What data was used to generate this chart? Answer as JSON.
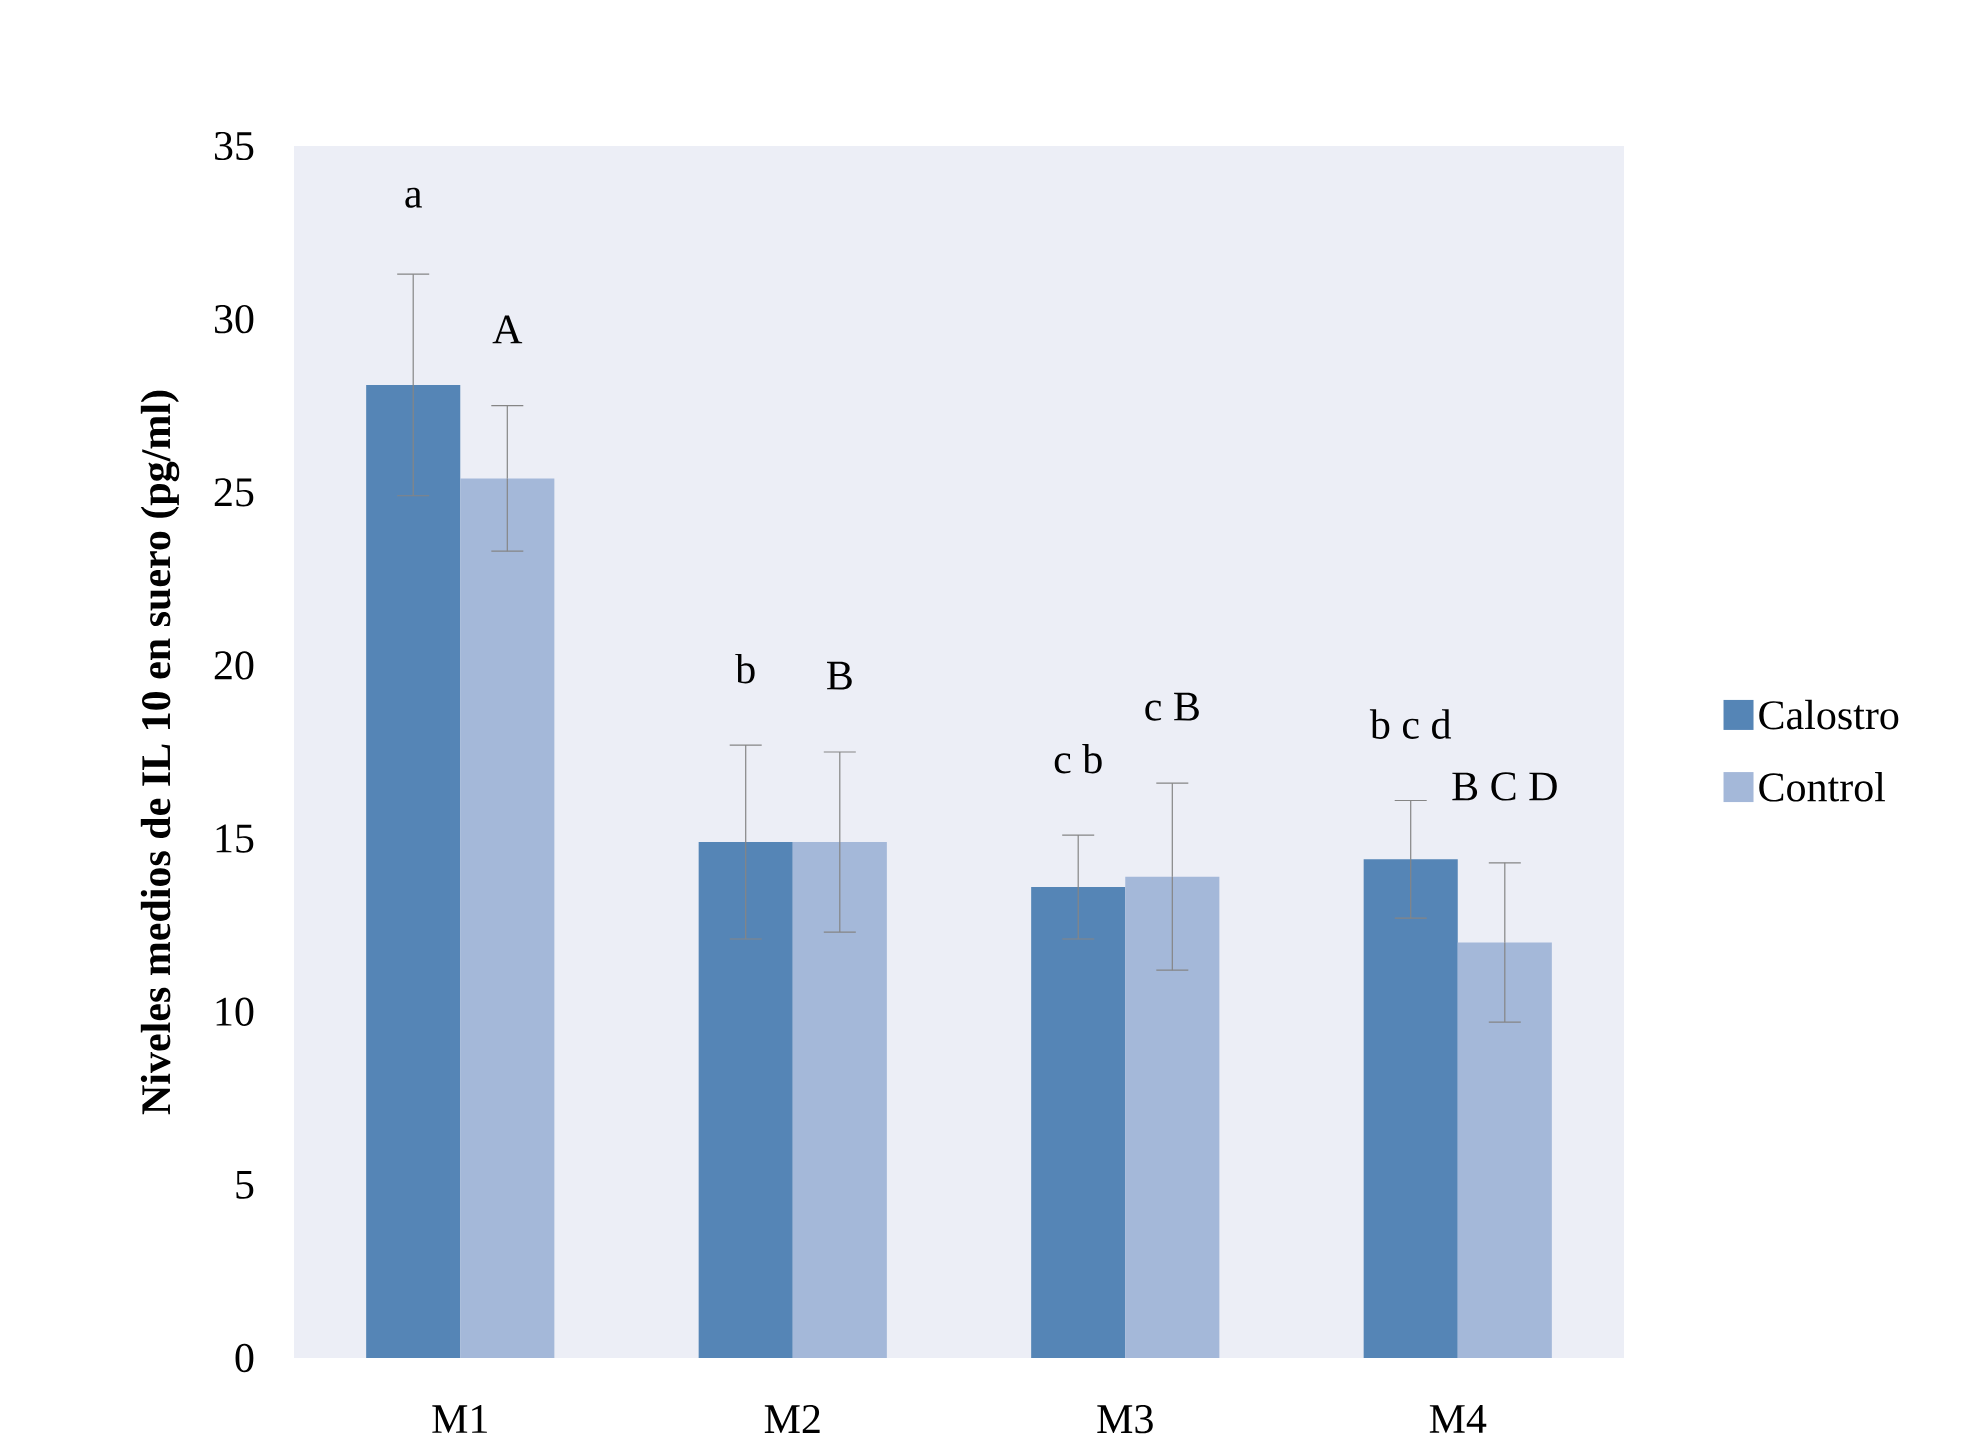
{
  "chart_data": {
    "type": "bar",
    "ylabel": "**Niveles medios de IL 10 en suero (pg/ml)**",
    "categories": [
      "M1",
      "M2",
      "M3",
      "M4"
    ],
    "series": [
      {
        "name": "Calostro",
        "color": "#5585b6",
        "values": [
          28.1,
          14.9,
          13.6,
          14.4
        ],
        "errors": [
          3.2,
          2.8,
          1.5,
          1.7
        ]
      },
      {
        "name": "Control",
        "color": "#a4b8d9",
        "values": [
          25.4,
          14.9,
          13.9,
          12.0
        ],
        "errors": [
          2.1,
          2.6,
          2.7,
          2.3
        ]
      }
    ],
    "ylim": [
      0,
      35
    ],
    "yticks": [
      0,
      5,
      10,
      15,
      20,
      25,
      30,
      35
    ],
    "legend": "right",
    "annotations": [
      "a",
      "A",
      "b",
      "B",
      "c b",
      "c B",
      "b c d",
      "B C D"
    ]
  }
}
